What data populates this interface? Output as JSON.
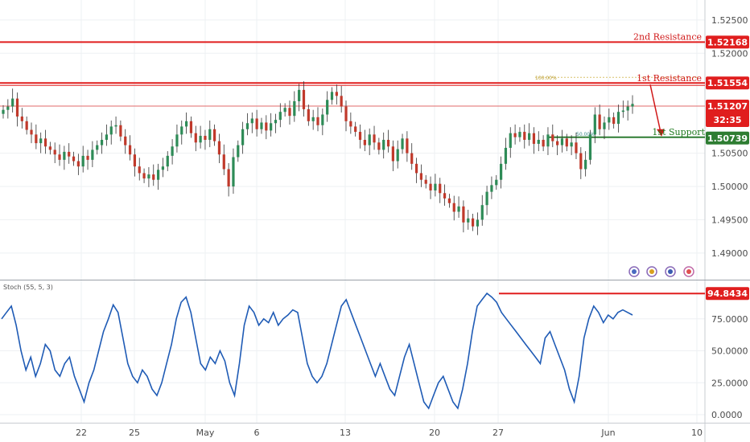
{
  "chart_data": [
    {
      "type": "candlestick",
      "ylim": [
        1.486,
        1.528
      ],
      "y_ticks": [
        "1.52500",
        "1.52000",
        "1.50500",
        "1.50000",
        "1.49500",
        "1.49000"
      ],
      "x_ticks": [
        "22",
        "25",
        "May",
        "6",
        "13",
        "20",
        "27",
        "Jun",
        "10"
      ],
      "levels": [
        {
          "label": "2nd Resistance",
          "value": 1.52168,
          "value_text": "1.52168",
          "color": "#e01e1e"
        },
        {
          "label": "1st Resistance",
          "value": 1.51554,
          "value_text": "1.51554",
          "color": "#e01e1e"
        },
        {
          "label": "1st Support",
          "value": 1.50739,
          "value_text": "1.50739",
          "color": "#2e7d32"
        }
      ],
      "last_price": {
        "value": 1.51207,
        "value_text": "1.51207",
        "countdown": "32:35",
        "color": "#e01e1e"
      },
      "fib_labels": {
        "top": "100.00%",
        "mid": "50.00%"
      },
      "close_path": [
        1.5115,
        1.512,
        1.5132,
        1.5105,
        1.5098,
        1.5085,
        1.5078,
        1.5065,
        1.5072,
        1.506,
        1.5055,
        1.5048,
        1.504,
        1.5052,
        1.5045,
        1.5038,
        1.503,
        1.5046,
        1.504,
        1.5055,
        1.5062,
        1.507,
        1.5078,
        1.509,
        1.5092,
        1.5075,
        1.5062,
        1.5048,
        1.503,
        1.502,
        1.5012,
        1.5018,
        1.501,
        1.5025,
        1.503,
        1.5046,
        1.506,
        1.5078,
        1.509,
        1.5098,
        1.508,
        1.5066,
        1.5076,
        1.507,
        1.5086,
        1.5068,
        1.5048,
        1.5026,
        1.5,
        1.5044,
        1.5062,
        1.5086,
        1.5095,
        1.5102,
        1.5086,
        1.5096,
        1.5084,
        1.5095,
        1.51,
        1.5112,
        1.5118,
        1.5106,
        1.5128,
        1.5145,
        1.5116,
        1.5098,
        1.5104,
        1.5092,
        1.5108,
        1.513,
        1.5142,
        1.5136,
        1.512,
        1.5098,
        1.509,
        1.5082,
        1.507,
        1.5062,
        1.5078,
        1.5066,
        1.5055,
        1.507,
        1.506,
        1.5038,
        1.5056,
        1.5072,
        1.505,
        1.5034,
        1.502,
        1.501,
        1.5004,
        1.4994,
        1.5004,
        1.499,
        1.4982,
        1.4975,
        1.4962,
        1.497,
        1.4946,
        1.4952,
        1.494,
        1.495,
        1.4972,
        1.4992,
        1.5002,
        1.501,
        1.5034,
        1.5058,
        1.508,
        1.5074,
        1.5082,
        1.507,
        1.508,
        1.5064,
        1.507,
        1.506,
        1.5078,
        1.5068,
        1.5062,
        1.5072,
        1.506,
        1.5066,
        1.505,
        1.5026,
        1.504,
        1.5078,
        1.5108,
        1.5086,
        1.5096,
        1.5104,
        1.5094,
        1.5112,
        1.5114,
        1.512,
        1.5124
      ],
      "oscillator": {
        "label": "Stoch (55, 5, 3)",
        "ylim": [
          0,
          100
        ],
        "y_ticks": [
          "75.0000",
          "50.0000",
          "25.0000",
          "0.0000"
        ],
        "marker_value": 94.8434,
        "marker_text": "94.8434",
        "k_values": [
          75,
          80,
          85,
          70,
          50,
          35,
          45,
          30,
          40,
          55,
          50,
          35,
          30,
          40,
          45,
          30,
          20,
          10,
          25,
          35,
          50,
          65,
          75,
          86,
          80,
          60,
          40,
          30,
          25,
          35,
          30,
          20,
          15,
          25,
          40,
          55,
          75,
          88,
          92,
          80,
          60,
          40,
          35,
          45,
          40,
          50,
          42,
          25,
          15,
          40,
          70,
          85,
          80,
          70,
          75,
          72,
          80,
          70,
          75,
          78,
          82,
          80,
          60,
          40,
          30,
          25,
          30,
          40,
          55,
          70,
          85,
          90,
          80,
          70,
          60,
          50,
          40,
          30,
          40,
          30,
          20,
          15,
          30,
          45,
          55,
          40,
          25,
          10,
          5,
          15,
          25,
          30,
          20,
          10,
          5,
          20,
          40,
          65,
          85,
          90,
          95,
          92,
          88,
          80,
          75,
          70,
          65,
          60,
          55,
          50,
          45,
          40,
          60,
          65,
          55,
          45,
          35,
          20,
          10,
          30,
          60,
          75,
          85,
          80,
          72,
          78,
          75,
          80,
          82,
          80,
          78
        ]
      }
    }
  ]
}
